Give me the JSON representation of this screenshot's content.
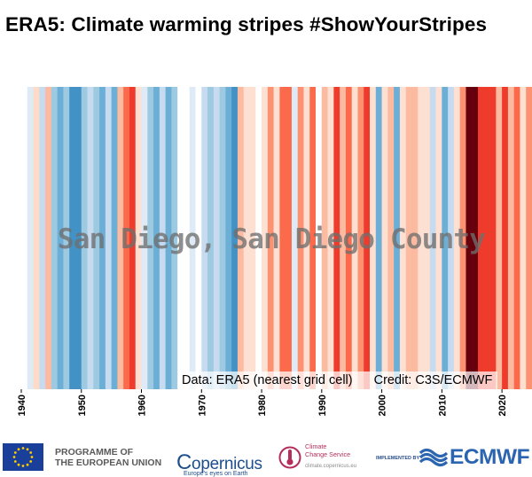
{
  "title": "ERA5: Climate warming stripes #ShowYourStripes",
  "location_label": "San Diego, San Diego County",
  "source": {
    "data_text": "Data: ERA5 (nearest grid cell)",
    "credit_text": "Credit: C3S/ECMWF"
  },
  "chart_data": {
    "type": "heatmap",
    "title": "ERA5: Climate warming stripes #ShowYourStripes",
    "xlabel": "",
    "ylabel": "",
    "x_start_year": 1940,
    "x_end_year": 2024,
    "xlim": [
      1940,
      2025
    ],
    "xticks": [
      1940,
      1950,
      1960,
      1970,
      1980,
      1990,
      2000,
      2010,
      2020
    ],
    "xtick_labels": [
      "1940",
      "1950",
      "1960",
      "1970",
      "1980",
      "1990",
      "2000",
      "2010",
      "2020"
    ],
    "color_scale": "blue-to-red diverging (cool to warm anomaly)",
    "grid": false,
    "legend": "none",
    "stripes": [
      {
        "year": 1940,
        "color": "#ffffff"
      },
      {
        "year": 1941,
        "color": "#deebf7"
      },
      {
        "year": 1942,
        "color": "#fddbc7"
      },
      {
        "year": 1943,
        "color": "#c6dbef"
      },
      {
        "year": 1944,
        "color": "#fcbba1"
      },
      {
        "year": 1945,
        "color": "#9ecae1"
      },
      {
        "year": 1946,
        "color": "#6baed6"
      },
      {
        "year": 1947,
        "color": "#9ecae1"
      },
      {
        "year": 1948,
        "color": "#4292c6"
      },
      {
        "year": 1949,
        "color": "#4292c6"
      },
      {
        "year": 1950,
        "color": "#9ecae1"
      },
      {
        "year": 1951,
        "color": "#c6dbef"
      },
      {
        "year": 1952,
        "color": "#9ecae1"
      },
      {
        "year": 1953,
        "color": "#6baed6"
      },
      {
        "year": 1954,
        "color": "#c6dbef"
      },
      {
        "year": 1955,
        "color": "#6baed6"
      },
      {
        "year": 1956,
        "color": "#fcbba1"
      },
      {
        "year": 1957,
        "color": "#fb6a4a"
      },
      {
        "year": 1958,
        "color": "#ef3b2c"
      },
      {
        "year": 1959,
        "color": "#fee0d2"
      },
      {
        "year": 1960,
        "color": "#deebf7"
      },
      {
        "year": 1961,
        "color": "#9ecae1"
      },
      {
        "year": 1962,
        "color": "#6baed6"
      },
      {
        "year": 1963,
        "color": "#c6dbef"
      },
      {
        "year": 1964,
        "color": "#6baed6"
      },
      {
        "year": 1965,
        "color": "#9ecae1"
      },
      {
        "year": 1966,
        "color": "#ffffff"
      },
      {
        "year": 1967,
        "color": "#ffffff"
      },
      {
        "year": 1968,
        "color": "#deebf7"
      },
      {
        "year": 1969,
        "color": "#ffffff"
      },
      {
        "year": 1970,
        "color": "#c6dbef"
      },
      {
        "year": 1971,
        "color": "#9ecae1"
      },
      {
        "year": 1972,
        "color": "#c6dbef"
      },
      {
        "year": 1973,
        "color": "#9ecae1"
      },
      {
        "year": 1974,
        "color": "#6baed6"
      },
      {
        "year": 1975,
        "color": "#4292c6"
      },
      {
        "year": 1976,
        "color": "#fcbba1"
      },
      {
        "year": 1977,
        "color": "#fee0d2"
      },
      {
        "year": 1978,
        "color": "#fee0d2"
      },
      {
        "year": 1979,
        "color": "#ffffff"
      },
      {
        "year": 1980,
        "color": "#fee0d2"
      },
      {
        "year": 1981,
        "color": "#fc9272"
      },
      {
        "year": 1982,
        "color": "#fee0d2"
      },
      {
        "year": 1983,
        "color": "#fb6a4a"
      },
      {
        "year": 1984,
        "color": "#fb6a4a"
      },
      {
        "year": 1985,
        "color": "#deebf7"
      },
      {
        "year": 1986,
        "color": "#fc9272"
      },
      {
        "year": 1987,
        "color": "#fee0d2"
      },
      {
        "year": 1988,
        "color": "#fb6a4a"
      },
      {
        "year": 1989,
        "color": "#ffffff"
      },
      {
        "year": 1990,
        "color": "#fcbba1"
      },
      {
        "year": 1991,
        "color": "#fee0d2"
      },
      {
        "year": 1992,
        "color": "#ef3b2c"
      },
      {
        "year": 1993,
        "color": "#fcbba1"
      },
      {
        "year": 1994,
        "color": "#fb6a4a"
      },
      {
        "year": 1995,
        "color": "#fee0d2"
      },
      {
        "year": 1996,
        "color": "#fc9272"
      },
      {
        "year": 1997,
        "color": "#ef3b2c"
      },
      {
        "year": 1998,
        "color": "#fee0d2"
      },
      {
        "year": 1999,
        "color": "#6baed6"
      },
      {
        "year": 2000,
        "color": "#fee0d2"
      },
      {
        "year": 2001,
        "color": "#fcbba1"
      },
      {
        "year": 2002,
        "color": "#6baed6"
      },
      {
        "year": 2003,
        "color": "#fee0d2"
      },
      {
        "year": 2004,
        "color": "#fcbba1"
      },
      {
        "year": 2005,
        "color": "#fcbba1"
      },
      {
        "year": 2006,
        "color": "#fee0d2"
      },
      {
        "year": 2007,
        "color": "#fee0d2"
      },
      {
        "year": 2008,
        "color": "#c6dbef"
      },
      {
        "year": 2009,
        "color": "#fee0d2"
      },
      {
        "year": 2010,
        "color": "#6baed6"
      },
      {
        "year": 2011,
        "color": "#c6dbef"
      },
      {
        "year": 2012,
        "color": "#fee0d2"
      },
      {
        "year": 2013,
        "color": "#fc9272"
      },
      {
        "year": 2014,
        "color": "#67000d"
      },
      {
        "year": 2015,
        "color": "#67000d"
      },
      {
        "year": 2016,
        "color": "#ef3b2c"
      },
      {
        "year": 2017,
        "color": "#ef3b2c"
      },
      {
        "year": 2018,
        "color": "#ef3b2c"
      },
      {
        "year": 2019,
        "color": "#fcbba1"
      },
      {
        "year": 2020,
        "color": "#ef3b2c"
      },
      {
        "year": 2021,
        "color": "#fcbba1"
      },
      {
        "year": 2022,
        "color": "#fb6a4a"
      },
      {
        "year": 2023,
        "color": "#fee0d2"
      },
      {
        "year": 2024,
        "color": "#fc9272"
      }
    ]
  },
  "footer": {
    "eu_programme_line1": "PROGRAMME OF",
    "eu_programme_line2": "THE EUROPEAN UNION",
    "copernicus_name": "opernicus",
    "copernicus_initial": "C",
    "copernicus_tagline": "Europe's eyes on Earth",
    "c3s_line1": "Climate",
    "c3s_line2": "Change Service",
    "c3s_url": "climate.copernicus.eu",
    "implemented_by": "IMPLEMENTED BY",
    "ecmwf_name": "ECMWF",
    "colors": {
      "eu_blue": "#1a3f9a",
      "eu_star": "#ffcc00",
      "copernicus_blue": "#1d4f8c",
      "c3s_magenta": "#b42d5b",
      "ecmwf_blue": "#2b65b0"
    },
    "icons": [
      "eu-flag-icon",
      "copernicus-logo-icon",
      "c3s-thermometer-icon",
      "ecmwf-logo-icon"
    ]
  }
}
